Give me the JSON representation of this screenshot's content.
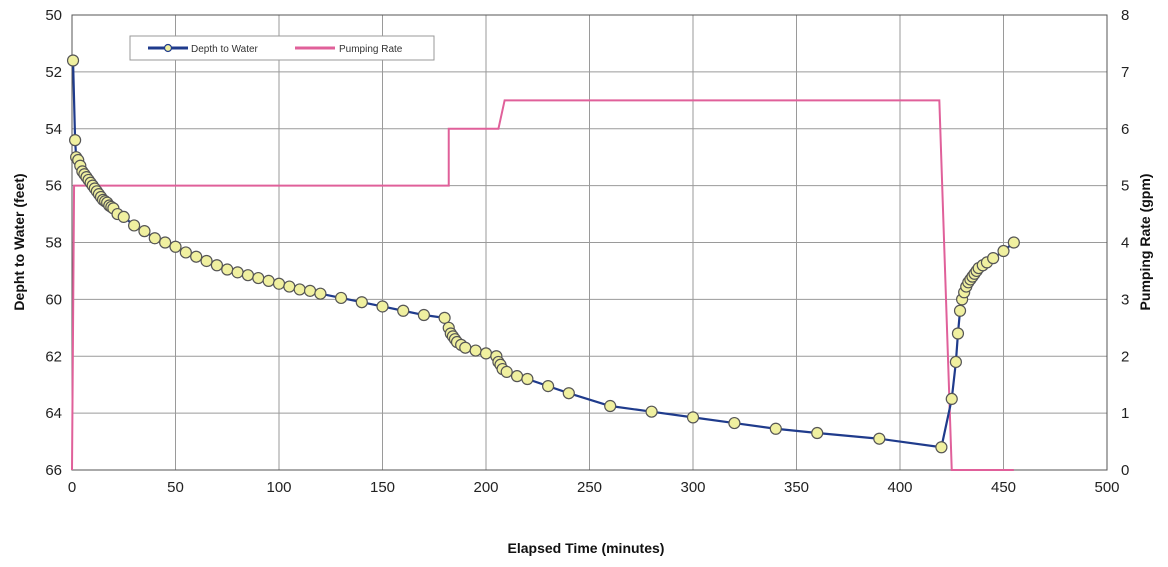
{
  "chart_data": {
    "type": "line",
    "xlabel": "Elapsed Time (minutes)",
    "ylabel_left": "Depht to Water (feet)",
    "ylabel_right": "Pumping Rate (gpm)",
    "x_range": [
      0,
      500
    ],
    "x_ticks": [
      0,
      50,
      100,
      150,
      200,
      250,
      300,
      350,
      400,
      450,
      500
    ],
    "y_left_range": [
      50,
      66
    ],
    "y_left_inverted": true,
    "y_left_ticks": [
      50,
      52,
      54,
      56,
      58,
      60,
      62,
      64,
      66
    ],
    "y_right_range": [
      0,
      8
    ],
    "y_right_ticks": [
      0,
      1,
      2,
      3,
      4,
      5,
      6,
      7,
      8
    ],
    "grid": true,
    "legend_position": "top-left",
    "series": [
      {
        "name": "Depth to Water",
        "axis": "left",
        "color": "#1f3b8c",
        "marker_fill": "#f0f0a0",
        "x": [
          0.5,
          1.5,
          2,
          3,
          4,
          5,
          6,
          7,
          8,
          9,
          10,
          11,
          12,
          13,
          14,
          15,
          16,
          17,
          18,
          19,
          20,
          22,
          25,
          30,
          35,
          40,
          45,
          50,
          55,
          60,
          65,
          70,
          75,
          80,
          85,
          90,
          95,
          100,
          105,
          110,
          115,
          120,
          130,
          140,
          150,
          160,
          170,
          180,
          182,
          183,
          184,
          185,
          186,
          188,
          190,
          195,
          200,
          205,
          206,
          207,
          208,
          210,
          215,
          220,
          230,
          240,
          260,
          280,
          300,
          320,
          340,
          360,
          390,
          420,
          425,
          427,
          428,
          429,
          430,
          431,
          432,
          433,
          434,
          435,
          436,
          437,
          438,
          440,
          442,
          445,
          450,
          455
        ],
        "y": [
          51.6,
          54.4,
          55.0,
          55.1,
          55.3,
          55.5,
          55.6,
          55.7,
          55.8,
          55.9,
          56.0,
          56.1,
          56.2,
          56.3,
          56.4,
          56.5,
          56.55,
          56.6,
          56.7,
          56.75,
          56.8,
          57.0,
          57.1,
          57.4,
          57.6,
          57.85,
          58.0,
          58.15,
          58.35,
          58.5,
          58.65,
          58.8,
          58.95,
          59.05,
          59.15,
          59.25,
          59.35,
          59.45,
          59.55,
          59.65,
          59.7,
          59.8,
          59.95,
          60.1,
          60.25,
          60.4,
          60.55,
          60.65,
          61.0,
          61.2,
          61.3,
          61.4,
          61.5,
          61.6,
          61.7,
          61.8,
          61.9,
          62.0,
          62.2,
          62.3,
          62.45,
          62.55,
          62.7,
          62.8,
          63.05,
          63.3,
          63.75,
          63.95,
          64.15,
          64.35,
          64.55,
          64.7,
          64.9,
          65.2,
          63.5,
          62.2,
          61.2,
          60.4,
          60.0,
          59.75,
          59.55,
          59.4,
          59.3,
          59.2,
          59.1,
          59.0,
          58.9,
          58.8,
          58.7,
          58.55,
          58.3,
          58.0
        ]
      },
      {
        "name": "Pumping Rate",
        "axis": "right",
        "color": "#e0609a",
        "x": [
          0,
          1,
          182,
          182,
          206,
          209,
          419,
          425,
          455
        ],
        "y": [
          0,
          5,
          5,
          6,
          6,
          6.5,
          6.5,
          0,
          0
        ]
      }
    ]
  }
}
